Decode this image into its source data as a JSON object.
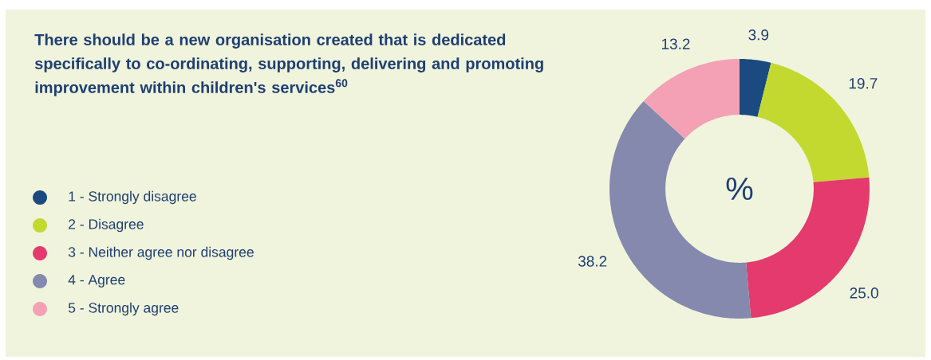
{
  "chart_data": {
    "type": "donut",
    "title": "There should be a new organisation created that is dedicated specifically to co-ordinating, supporting, delivering and promoting improvement within children's services$^{60}$",
    "categories": [
      "1 - Strongly disagree",
      "2 - Disagree",
      "3 - Neither agree nor disagree",
      "4 - Agree",
      "5 - Strongly agree"
    ],
    "values": [
      3.9,
      19.7,
      25.0,
      38.2,
      13.2
    ],
    "colors": [
      "#1b4a80",
      "#c3d92f",
      "#e43a6e",
      "#8589ae",
      "#f4a1b5"
    ],
    "value_labels": [
      "3.9",
      "19.7",
      "25.0",
      "38.2",
      "13.2"
    ],
    "legend": "left",
    "annotations": [
      "%"
    ]
  }
}
